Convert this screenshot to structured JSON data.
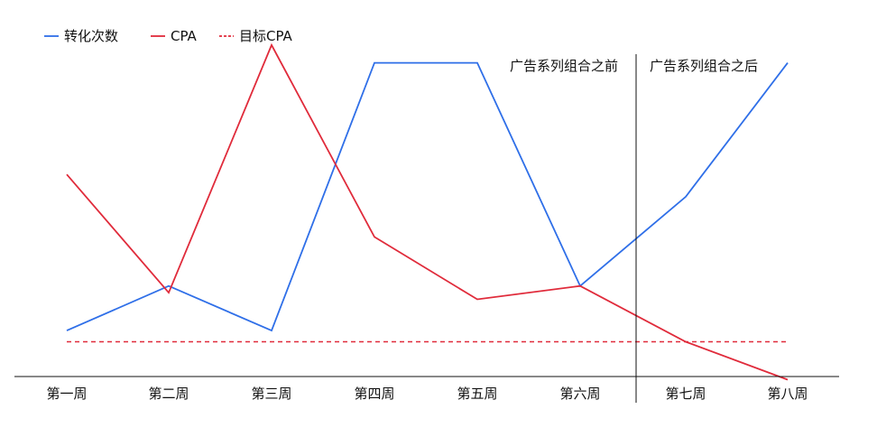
{
  "chart_data": {
    "type": "line",
    "title": "",
    "xlabel": "",
    "ylabel": "",
    "categories": [
      "第一周",
      "第二周",
      "第三周",
      "第四周",
      "第五周",
      "第六周",
      "第七周",
      "第八周"
    ],
    "series": [
      {
        "name": "转化次数",
        "values": [
          5,
          25,
          5,
          125,
          125,
          25,
          65,
          125
        ],
        "color": "#2f6fe8",
        "line_style": "solid"
      },
      {
        "name": "CPA",
        "values": [
          75,
          22,
          133,
          47,
          19,
          25,
          0,
          -17
        ],
        "color": "#e02b3b",
        "line_style": "solid"
      },
      {
        "name": "目标CPA",
        "values": [
          0,
          0,
          0,
          0,
          0,
          0,
          0,
          0
        ],
        "color": "#e02b3b",
        "line_style": "dashed"
      }
    ],
    "ylim": [
      -33,
      137
    ],
    "grid": false,
    "legend_position": "top-left",
    "y_axis_visible": false,
    "divider": {
      "between": [
        "第六周",
        "第七周"
      ],
      "label_before": "广告系列组合之前",
      "label_after": "广告系列组合之后"
    }
  }
}
